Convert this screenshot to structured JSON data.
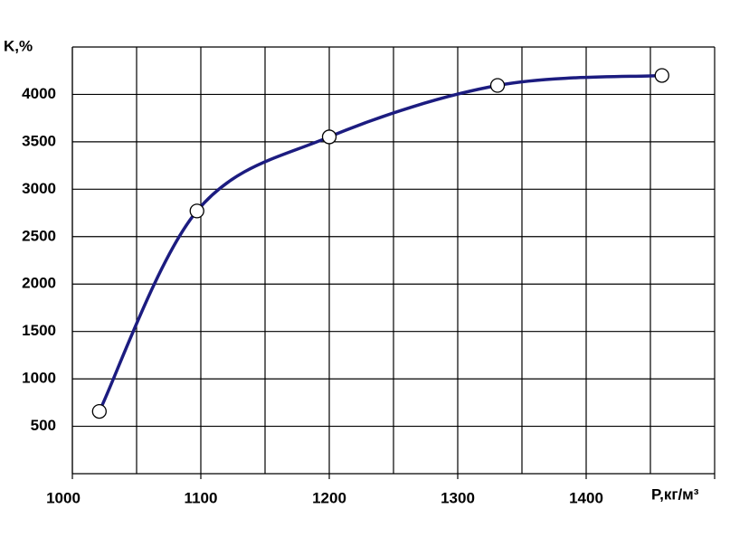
{
  "chart_data": {
    "type": "line",
    "x_label": "P,кг/м³",
    "y_label": "K,%",
    "x": [
      1021,
      1097,
      1200,
      1331,
      1459
    ],
    "series": [
      {
        "color": "#1c1c80",
        "values": [
          657,
          2771,
          3552,
          4095,
          4200
        ]
      }
    ],
    "xlim": [
      1000,
      1500
    ],
    "xticks": [
      1000,
      1100,
      1200,
      1300,
      1400
    ],
    "ylim": [
      0,
      4500
    ],
    "yticks": [
      500,
      1000,
      1500,
      2000,
      2500,
      3000,
      3500,
      4000
    ],
    "grid": true,
    "markers": true
  }
}
